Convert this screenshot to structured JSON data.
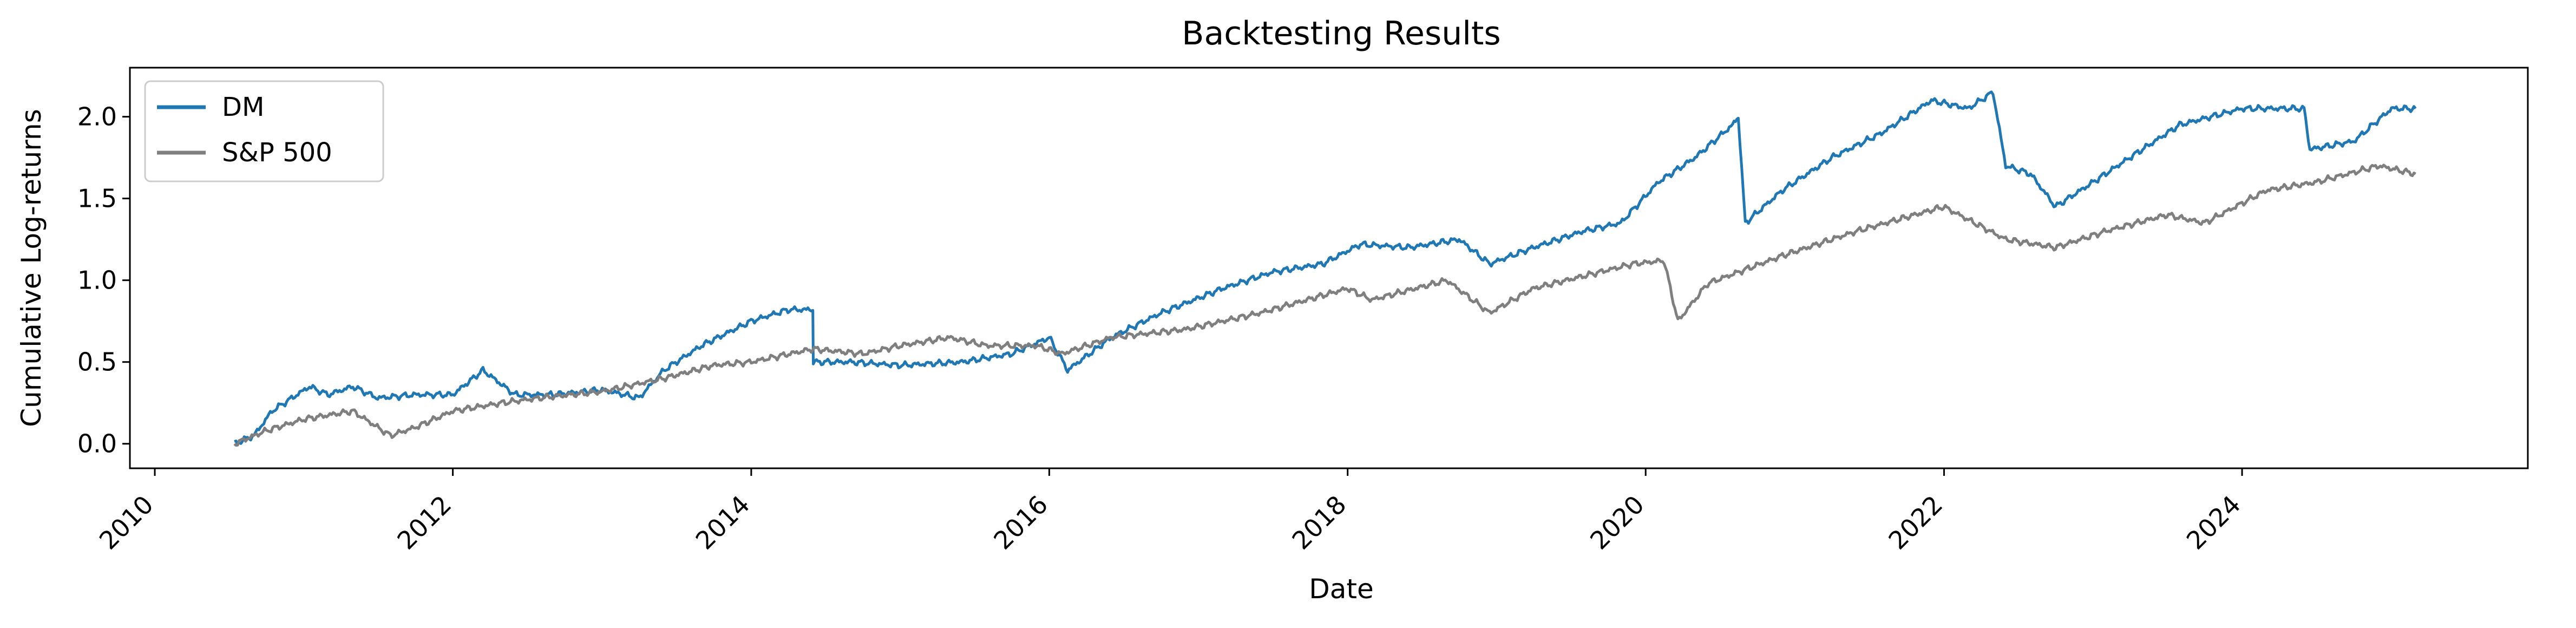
{
  "chart_data": {
    "type": "line",
    "title": "Backtesting Results",
    "xlabel": "Date",
    "ylabel": "Cumulative Log-returns",
    "xlim": [
      "2009-11-01",
      "2025-12-01"
    ],
    "ylim": [
      -0.15,
      2.3
    ],
    "x_ticks": [
      "2010",
      "2012",
      "2014",
      "2016",
      "2018",
      "2020",
      "2022",
      "2024"
    ],
    "y_ticks": [
      "0.0",
      "0.5",
      "1.0",
      "1.5",
      "2.0"
    ],
    "grid": false,
    "legend_position": "upper-left",
    "series": [
      {
        "name": "DM",
        "color": "#1f77b4",
        "points": [
          [
            "2010-07-15",
            0.0
          ],
          [
            "2010-09-01",
            0.05
          ],
          [
            "2010-10-15",
            0.2
          ],
          [
            "2011-01-15",
            0.35
          ],
          [
            "2011-03-01",
            0.3
          ],
          [
            "2011-05-01",
            0.35
          ],
          [
            "2011-07-01",
            0.28
          ],
          [
            "2011-10-01",
            0.3
          ],
          [
            "2012-01-01",
            0.3
          ],
          [
            "2012-03-15",
            0.45
          ],
          [
            "2012-06-01",
            0.3
          ],
          [
            "2012-09-01",
            0.3
          ],
          [
            "2013-01-01",
            0.33
          ],
          [
            "2013-04-01",
            0.28
          ],
          [
            "2013-06-01",
            0.45
          ],
          [
            "2013-09-01",
            0.6
          ],
          [
            "2014-01-01",
            0.75
          ],
          [
            "2014-04-01",
            0.82
          ],
          [
            "2014-06-01",
            0.82
          ],
          [
            "2014-06-02",
            0.5
          ],
          [
            "2014-09-01",
            0.5
          ],
          [
            "2015-01-01",
            0.48
          ],
          [
            "2015-06-01",
            0.5
          ],
          [
            "2015-10-01",
            0.55
          ],
          [
            "2016-01-01",
            0.65
          ],
          [
            "2016-02-15",
            0.45
          ],
          [
            "2016-06-01",
            0.65
          ],
          [
            "2016-10-01",
            0.8
          ],
          [
            "2017-03-01",
            0.95
          ],
          [
            "2017-07-01",
            1.05
          ],
          [
            "2017-11-01",
            1.1
          ],
          [
            "2018-02-01",
            1.22
          ],
          [
            "2018-06-01",
            1.2
          ],
          [
            "2018-10-01",
            1.25
          ],
          [
            "2018-12-15",
            1.1
          ],
          [
            "2019-04-01",
            1.2
          ],
          [
            "2019-08-01",
            1.3
          ],
          [
            "2019-11-01",
            1.35
          ],
          [
            "2020-02-01",
            1.6
          ],
          [
            "2020-05-01",
            1.75
          ],
          [
            "2020-08-01",
            1.95
          ],
          [
            "2020-08-15",
            2.0
          ],
          [
            "2020-09-01",
            1.35
          ],
          [
            "2020-12-01",
            1.55
          ],
          [
            "2021-04-01",
            1.75
          ],
          [
            "2021-08-01",
            1.9
          ],
          [
            "2021-12-01",
            2.1
          ],
          [
            "2022-03-01",
            2.05
          ],
          [
            "2022-05-01",
            2.15
          ],
          [
            "2022-06-01",
            1.7
          ],
          [
            "2022-08-01",
            1.65
          ],
          [
            "2022-10-01",
            1.45
          ],
          [
            "2023-01-01",
            1.6
          ],
          [
            "2023-04-01",
            1.75
          ],
          [
            "2023-08-01",
            1.95
          ],
          [
            "2024-01-01",
            2.05
          ],
          [
            "2024-04-01",
            2.05
          ],
          [
            "2024-06-01",
            2.05
          ],
          [
            "2024-06-15",
            1.8
          ],
          [
            "2024-10-01",
            1.85
          ],
          [
            "2025-01-01",
            2.05
          ],
          [
            "2025-03-01",
            2.05
          ]
        ]
      },
      {
        "name": "S&P 500",
        "color": "#7f7f7f",
        "points": [
          [
            "2010-07-15",
            0.0
          ],
          [
            "2010-10-01",
            0.08
          ],
          [
            "2011-01-01",
            0.15
          ],
          [
            "2011-05-01",
            0.2
          ],
          [
            "2011-08-01",
            0.05
          ],
          [
            "2011-10-01",
            0.1
          ],
          [
            "2012-01-01",
            0.2
          ],
          [
            "2012-05-01",
            0.25
          ],
          [
            "2012-08-01",
            0.28
          ],
          [
            "2013-01-01",
            0.32
          ],
          [
            "2013-06-01",
            0.4
          ],
          [
            "2013-10-01",
            0.48
          ],
          [
            "2014-01-01",
            0.5
          ],
          [
            "2014-06-01",
            0.58
          ],
          [
            "2014-10-01",
            0.55
          ],
          [
            "2015-01-01",
            0.6
          ],
          [
            "2015-05-01",
            0.65
          ],
          [
            "2015-08-01",
            0.6
          ],
          [
            "2015-12-01",
            0.6
          ],
          [
            "2016-02-01",
            0.55
          ],
          [
            "2016-06-01",
            0.65
          ],
          [
            "2016-12-01",
            0.7
          ],
          [
            "2017-06-01",
            0.8
          ],
          [
            "2018-01-01",
            0.95
          ],
          [
            "2018-03-01",
            0.88
          ],
          [
            "2018-09-01",
            1.0
          ],
          [
            "2018-12-15",
            0.8
          ],
          [
            "2019-04-01",
            0.95
          ],
          [
            "2019-12-01",
            1.1
          ],
          [
            "2020-02-15",
            1.12
          ],
          [
            "2020-03-20",
            0.75
          ],
          [
            "2020-06-01",
            0.98
          ],
          [
            "2020-12-01",
            1.15
          ],
          [
            "2021-06-01",
            1.3
          ],
          [
            "2021-12-31",
            1.45
          ],
          [
            "2022-06-01",
            1.25
          ],
          [
            "2022-10-01",
            1.2
          ],
          [
            "2023-02-01",
            1.3
          ],
          [
            "2023-07-01",
            1.4
          ],
          [
            "2023-10-01",
            1.35
          ],
          [
            "2024-03-01",
            1.55
          ],
          [
            "2024-07-01",
            1.6
          ],
          [
            "2024-12-01",
            1.7
          ],
          [
            "2025-03-01",
            1.65
          ]
        ]
      }
    ]
  }
}
